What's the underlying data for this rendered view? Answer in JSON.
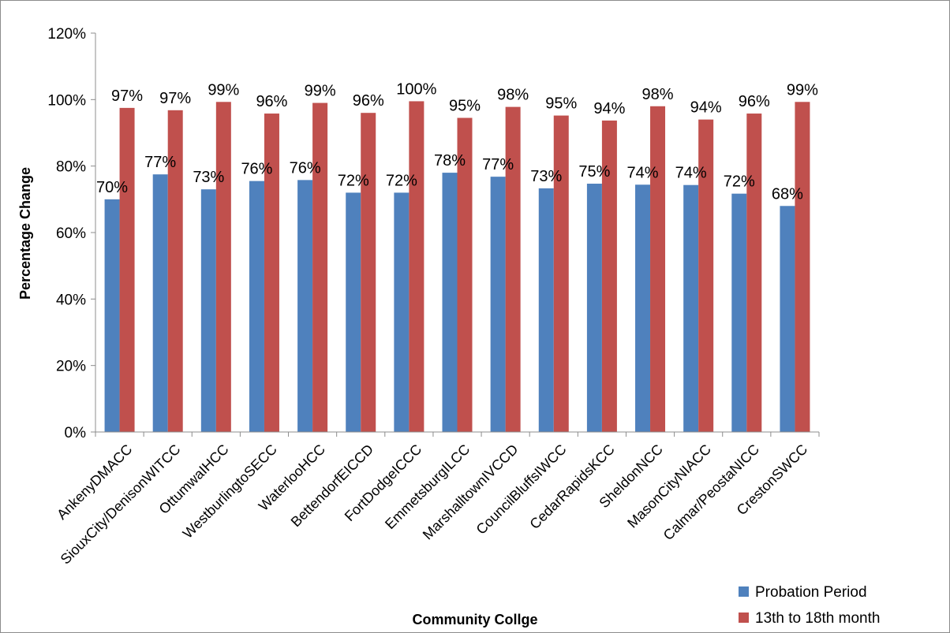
{
  "chart_data": {
    "type": "bar",
    "title": "",
    "xlabel": "Community Collge",
    "ylabel": "Percentage Change",
    "ylim": [
      0,
      1.2
    ],
    "yticks": [
      "0%",
      "20%",
      "40%",
      "60%",
      "80%",
      "100%",
      "120%"
    ],
    "grid": false,
    "legend_position": "bottom-right",
    "categories": [
      "AnkenyDMACC",
      "SiouxCity/DenisonWITCC",
      "OttumwaIHCC",
      "WestburlingtoSECC",
      "WaterlooHCC",
      "BettendorfEICCD",
      "FortDodgeICCC",
      "EmmetsburgILCC",
      "MarshalltownIVCCD",
      "CouncilBluffsIWCC",
      "CedarRapidsKCC",
      "SheldonNCC",
      "MasonCityNIACC",
      "Calmar/PeostaNICC",
      "CrestonSWCC"
    ],
    "series": [
      {
        "name": "Probation Period",
        "color": "#4F81BD",
        "values": [
          0.7,
          0.775,
          0.73,
          0.755,
          0.758,
          0.72,
          0.72,
          0.78,
          0.768,
          0.733,
          0.747,
          0.744,
          0.743,
          0.717,
          0.68
        ],
        "labels": [
          "70%",
          "77%",
          "73%",
          "76%",
          "76%",
          "72%",
          "72%",
          "78%",
          "77%",
          "73%",
          "75%",
          "74%",
          "74%",
          "72%",
          "68%"
        ]
      },
      {
        "name": "13th to 18th month",
        "color": "#C0504D",
        "values": [
          0.975,
          0.968,
          0.993,
          0.958,
          0.99,
          0.96,
          0.995,
          0.945,
          0.978,
          0.952,
          0.937,
          0.98,
          0.94,
          0.958,
          0.993
        ],
        "labels": [
          "97%",
          "97%",
          "99%",
          "96%",
          "99%",
          "96%",
          "100%",
          "95%",
          "98%",
          "95%",
          "94%",
          "98%",
          "94%",
          "96%",
          "99%"
        ]
      }
    ]
  }
}
